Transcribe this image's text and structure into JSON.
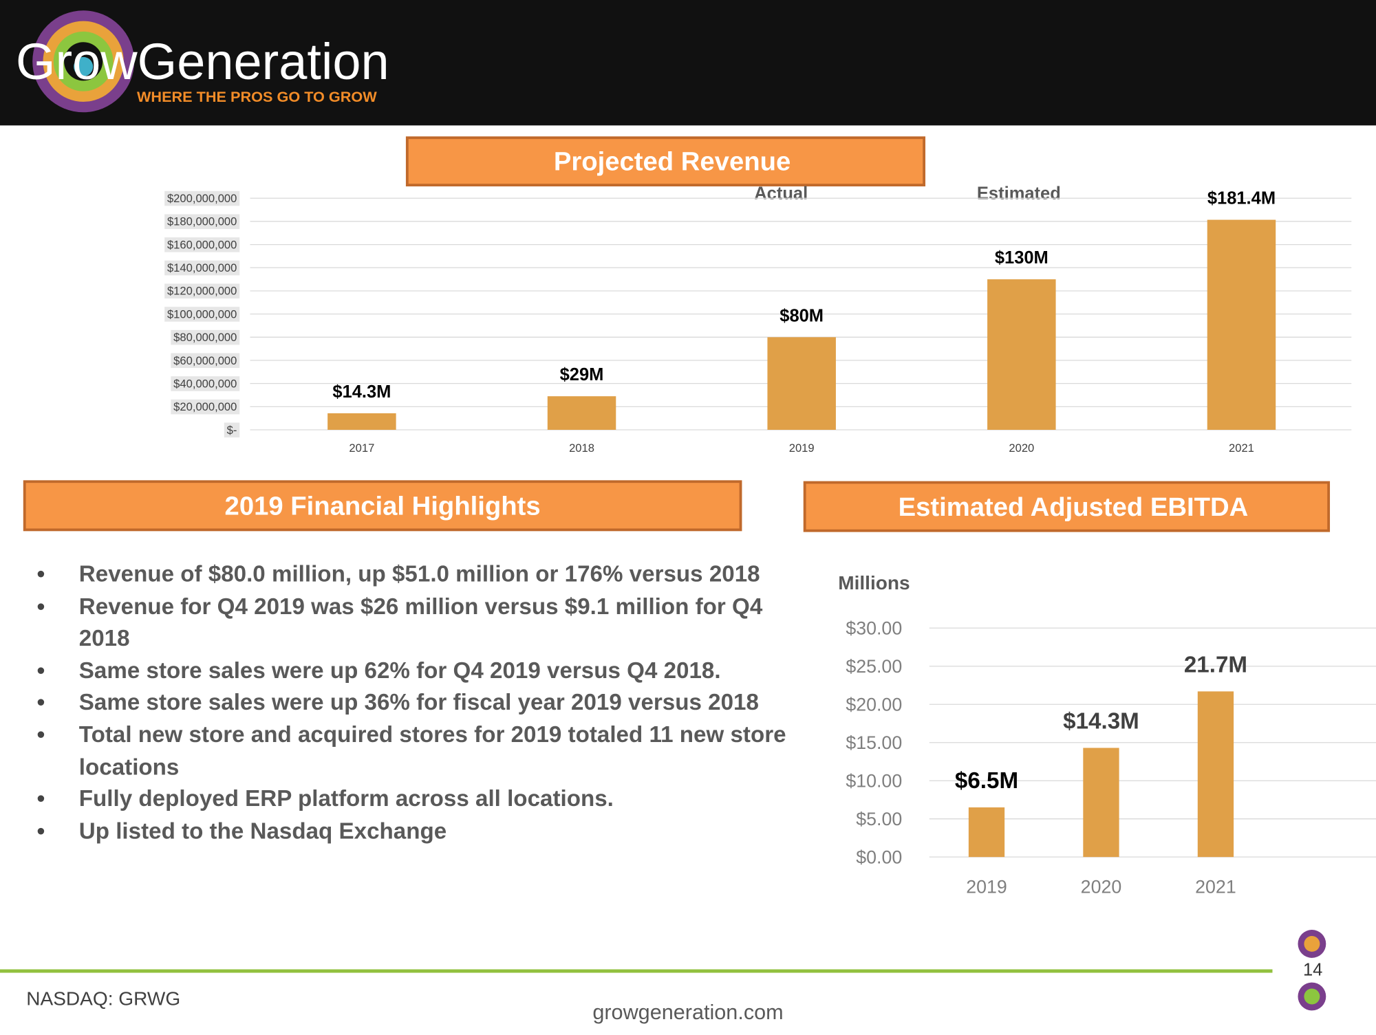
{
  "header": {
    "logo": "GrowGeneration",
    "tagline": "WHERE THE PROS GO TO GROW"
  },
  "chart_data": [
    {
      "type": "bar",
      "title": "Projected Revenue",
      "annotations": [
        "Actual",
        "Estimated"
      ],
      "categories": [
        "2017",
        "2018",
        "2019",
        "2020",
        "2021"
      ],
      "values": [
        14300000,
        29000000,
        80000000,
        130000000,
        181400000
      ],
      "value_labels": [
        "$14.3M",
        "$29M",
        "$80M",
        "$130M",
        "$181.4M"
      ],
      "color": "#e0a048",
      "ylim": [
        0,
        200000000
      ],
      "yticks": [
        {
          "value": 0,
          "label": "$-"
        },
        {
          "value": 20000000,
          "label": "$20,000,000"
        },
        {
          "value": 40000000,
          "label": "$40,000,000"
        },
        {
          "value": 60000000,
          "label": "$60,000,000"
        },
        {
          "value": 80000000,
          "label": "$80,000,000"
        },
        {
          "value": 100000000,
          "label": "$100,000,000"
        },
        {
          "value": 120000000,
          "label": "$120,000,000"
        },
        {
          "value": 140000000,
          "label": "$140,000,000"
        },
        {
          "value": 160000000,
          "label": "$160,000,000"
        },
        {
          "value": 180000000,
          "label": "$180,000,000"
        },
        {
          "value": 200000000,
          "label": "$200,000,000"
        }
      ],
      "grid": true
    },
    {
      "type": "bar",
      "title": "Estimated Adjusted EBITDA",
      "ylabel": "Millions",
      "categories": [
        "2019",
        "2020",
        "2021"
      ],
      "values": [
        6.5,
        14.3,
        21.7
      ],
      "value_labels": [
        "$6.5M",
        "$14.3M",
        "21.7M"
      ],
      "color": "#e0a048",
      "ylim": [
        0,
        30
      ],
      "yticks": [
        {
          "value": 0,
          "label": "$0.00"
        },
        {
          "value": 5,
          "label": "$5.00"
        },
        {
          "value": 10,
          "label": "$10.00"
        },
        {
          "value": 15,
          "label": "$15.00"
        },
        {
          "value": 20,
          "label": "$20.00"
        },
        {
          "value": 25,
          "label": "$25.00"
        },
        {
          "value": 30,
          "label": "$30.00"
        }
      ],
      "grid": true
    }
  ],
  "highlights": {
    "title": "2019 Financial Highlights",
    "items": [
      "Revenue of $80.0 million, up $51.0 million or 176% versus 2018",
      "Revenue for Q4 2019 was $26 million versus $9.1 million for Q4 2018",
      "Same store sales were up 62% for Q4 2019 versus Q4 2018.",
      "Same store sales were up 36% for fiscal year 2019 versus 2018",
      "Total new store and acquired stores for 2019 totaled 11 new store locations",
      "Fully deployed ERP platform across all locations.",
      "Up listed to the Nasdaq Exchange"
    ]
  },
  "footer": {
    "ticker": "NASDAQ: GRWG",
    "website": "growgeneration.com",
    "page": "14"
  }
}
